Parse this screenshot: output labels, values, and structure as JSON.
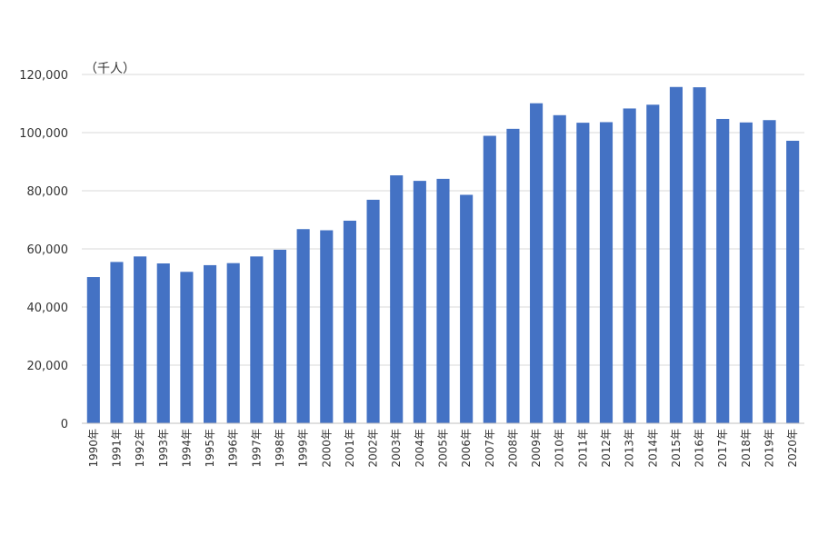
{
  "chart_data": {
    "type": "bar",
    "title": "",
    "xlabel": "",
    "ylabel": "",
    "unit_label": "（千人）",
    "ylim": [
      0,
      120000
    ],
    "yticks": [
      0,
      20000,
      40000,
      60000,
      80000,
      100000,
      120000
    ],
    "ytick_labels": [
      "0",
      "20,000",
      "40,000",
      "60,000",
      "80,000",
      "100,000",
      "120,000"
    ],
    "grid": true,
    "legend": "none",
    "bar_color": "#4472C4",
    "categories": [
      "1990年",
      "1991年",
      "1992年",
      "1993年",
      "1994年",
      "1995年",
      "1996年",
      "1997年",
      "1998年",
      "1999年",
      "2000年",
      "2001年",
      "2002年",
      "2003年",
      "2004年",
      "2005年",
      "2006年",
      "2007年",
      "2008年",
      "2009年",
      "2010年",
      "2011年",
      "2012年",
      "2013年",
      "2014年",
      "2015年",
      "2016年",
      "2017年",
      "2018年",
      "2019年",
      "2020年"
    ],
    "values": [
      50300,
      55500,
      57400,
      55000,
      52100,
      54400,
      55100,
      57400,
      59700,
      66800,
      66400,
      69700,
      76900,
      85300,
      83400,
      84100,
      78600,
      98900,
      101300,
      110100,
      106000,
      103400,
      103600,
      108300,
      109600,
      115700,
      115600,
      104700,
      103500,
      104300,
      97200
    ]
  }
}
